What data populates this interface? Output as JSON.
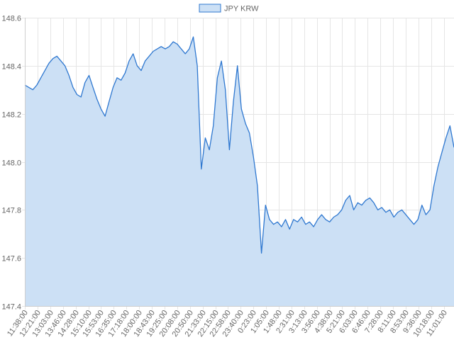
{
  "chart_data": {
    "type": "area",
    "title": "",
    "xlabel": "",
    "ylabel": "",
    "ylim": [
      147.4,
      148.6
    ],
    "y_ticks": [
      147.4,
      147.6,
      147.8,
      148.0,
      148.2,
      148.4,
      148.6
    ],
    "y_tick_labels": [
      "147.4",
      "147.6",
      "147.8",
      "148.0",
      "148.2",
      "148.4",
      "148.6"
    ],
    "grid": true,
    "legend_position": "top",
    "x_tick_labels": [
      "11:38:00",
      "12:21:00",
      "13:03:00",
      "13:46:00",
      "14:28:00",
      "15:10:00",
      "15:53:00",
      "16:35:00",
      "17:18:00",
      "18:00:00",
      "18:43:00",
      "19:25:00",
      "20:08:00",
      "20:50:00",
      "21:33:00",
      "22:15:00",
      "22:58:00",
      "23:40:00",
      "0:23:00",
      "1:05:00",
      "1:48:00",
      "2:31:00",
      "3:13:00",
      "3:56:00",
      "4:38:00",
      "5:21:00",
      "6:03:00",
      "6:46:00",
      "7:28:00",
      "8:11:00",
      "8:53:00",
      "9:36:00",
      "10:18:00",
      "11:01:00"
    ],
    "series": [
      {
        "name": "JPY KRW",
        "line_color": "#2f78d0",
        "fill_color": "#cce0f5",
        "values": [
          148.32,
          148.31,
          148.3,
          148.32,
          148.35,
          148.38,
          148.41,
          148.43,
          148.44,
          148.42,
          148.4,
          148.36,
          148.31,
          148.28,
          148.27,
          148.33,
          148.36,
          148.31,
          148.26,
          148.22,
          148.19,
          148.25,
          148.31,
          148.35,
          148.34,
          148.37,
          148.42,
          148.45,
          148.4,
          148.38,
          148.42,
          148.44,
          148.46,
          148.47,
          148.48,
          148.47,
          148.48,
          148.5,
          148.49,
          148.47,
          148.45,
          148.47,
          148.52,
          148.4,
          147.97,
          148.1,
          148.05,
          148.15,
          148.35,
          148.42,
          148.3,
          148.05,
          148.25,
          148.4,
          148.22,
          148.16,
          148.12,
          148.02,
          147.9,
          147.62,
          147.82,
          147.76,
          147.74,
          147.75,
          147.73,
          147.76,
          147.72,
          147.76,
          147.75,
          147.77,
          147.74,
          147.75,
          147.73,
          147.76,
          147.78,
          147.76,
          147.75,
          147.77,
          147.78,
          147.8,
          147.84,
          147.86,
          147.8,
          147.83,
          147.82,
          147.84,
          147.85,
          147.83,
          147.8,
          147.81,
          147.79,
          147.8,
          147.77,
          147.79,
          147.8,
          147.78,
          147.76,
          147.74,
          147.76,
          147.82,
          147.78,
          147.8,
          147.9,
          147.98,
          148.04,
          148.1,
          148.15,
          148.06
        ]
      }
    ]
  }
}
